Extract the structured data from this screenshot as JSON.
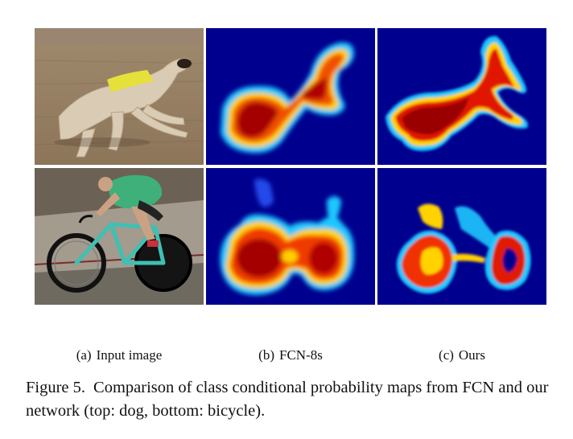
{
  "figure": {
    "number": "Figure 5.",
    "caption": "Comparison of class conditional probability maps from FCN and our network (top: dog, bottom: bicycle)."
  },
  "columns": [
    {
      "label": "(a)",
      "title": "Input image"
    },
    {
      "label": "(b)",
      "title": "FCN-8s"
    },
    {
      "label": "(c)",
      "title": "Ours"
    }
  ],
  "rows": [
    "dog",
    "bicycle"
  ],
  "colors": {
    "heatmap_background": "#00008f",
    "heatmap_high": "#a50000",
    "heatmap_mid": "#ffd200",
    "heatmap_low": "#1ec8ff"
  }
}
